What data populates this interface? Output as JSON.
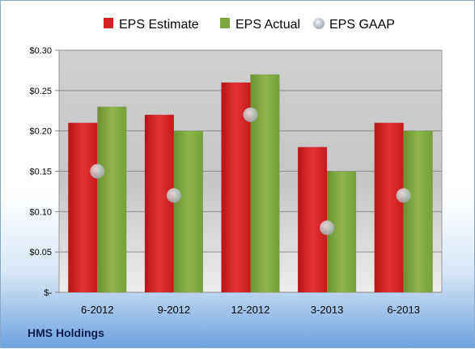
{
  "company": "HMS Holdings",
  "chart_data": {
    "type": "bar",
    "categories": [
      "6-2012",
      "9-2012",
      "12-2012",
      "3-2013",
      "6-2013"
    ],
    "series": [
      {
        "name": "EPS Estimate",
        "type": "bar",
        "color": "#d42222",
        "values": [
          0.21,
          0.22,
          0.26,
          0.18,
          0.21
        ]
      },
      {
        "name": "EPS Actual",
        "type": "bar",
        "color": "#7fa63f",
        "values": [
          0.23,
          0.2,
          0.27,
          0.15,
          0.2
        ]
      },
      {
        "name": "EPS GAAP",
        "type": "scatter",
        "color": "#b8bec6",
        "values": [
          0.15,
          0.12,
          0.22,
          0.08,
          0.12
        ]
      }
    ],
    "yticks": [
      {
        "value": 0.0,
        "label": "$-"
      },
      {
        "value": 0.05,
        "label": "$0.05"
      },
      {
        "value": 0.1,
        "label": "$0.10"
      },
      {
        "value": 0.15,
        "label": "$0.15"
      },
      {
        "value": 0.2,
        "label": "$0.20"
      },
      {
        "value": 0.25,
        "label": "$0.25"
      },
      {
        "value": 0.3,
        "label": "$0.30"
      }
    ],
    "ylim": [
      0,
      0.3
    ],
    "grid": true,
    "legend": "top"
  }
}
